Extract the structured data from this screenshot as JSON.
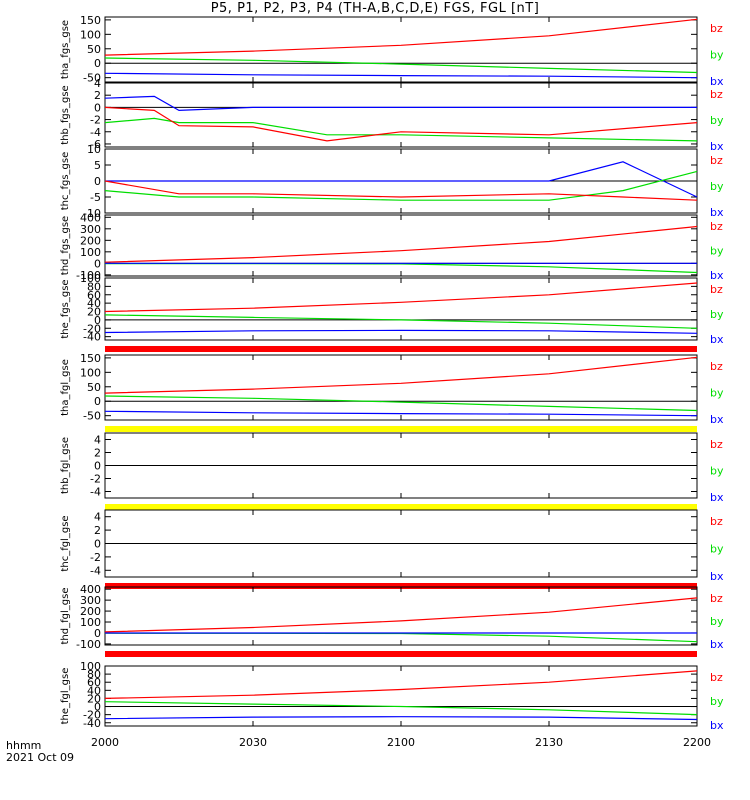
{
  "title": "P5, P1, P2, P3, P4 (TH-A,B,C,D,E) FGS, FGL [nT]",
  "colors": {
    "bx": "#0000ff",
    "by": "#00dd00",
    "bz": "#ff0000",
    "bar_red": "#ff0000",
    "bar_yellow": "#ffff00"
  },
  "x_axis": {
    "label": "hhmm",
    "date": "2021 Oct 09",
    "ticks": [
      "2000",
      "2030",
      "2100",
      "2130",
      "2200"
    ]
  },
  "chart_data": [
    {
      "type": "line",
      "ylabel": "tha_fgs_gse",
      "ylim": [
        -65,
        160
      ],
      "yticks": [
        "150",
        "100",
        "50",
        "0",
        "-50"
      ],
      "legend": [
        "bz",
        "by",
        "bx"
      ],
      "status_bar": "none",
      "x": [
        "2000",
        "2030",
        "2100",
        "2130",
        "2200"
      ],
      "series": [
        {
          "name": "bz",
          "values": [
            28,
            42,
            62,
            95,
            152
          ]
        },
        {
          "name": "by",
          "values": [
            18,
            10,
            -3,
            -18,
            -32
          ]
        },
        {
          "name": "bx",
          "values": [
            -35,
            -40,
            -43,
            -45,
            -50
          ]
        }
      ]
    },
    {
      "type": "line",
      "ylabel": "thb_fgs_gse",
      "ylim": [
        -6.5,
        4
      ],
      "yticks": [
        "4",
        "2",
        "0",
        "-2",
        "-4",
        "-6"
      ],
      "legend": [
        "bz",
        "by",
        "bx"
      ],
      "status_bar": "none",
      "x": [
        "2000",
        "2010",
        "2015",
        "2030",
        "2045",
        "2100",
        "2130",
        "2200"
      ],
      "series": [
        {
          "name": "bx",
          "values": [
            1.5,
            1.8,
            -0.5,
            0,
            0,
            0,
            0,
            0
          ]
        },
        {
          "name": "by",
          "values": [
            -2.5,
            -1.8,
            -2.5,
            -2.5,
            -4.5,
            -4.5,
            -5,
            -5.5
          ]
        },
        {
          "name": "bz",
          "values": [
            0,
            -0.5,
            -3,
            -3.2,
            -5.5,
            -4,
            -4.5,
            -2.5
          ]
        }
      ]
    },
    {
      "type": "line",
      "ylabel": "thc_fgs_gse",
      "ylim": [
        -10,
        10
      ],
      "yticks": [
        "10",
        "5",
        "0",
        "-5",
        "-10"
      ],
      "legend": [
        "bz",
        "by",
        "bx"
      ],
      "status_bar": "none",
      "x": [
        "2000",
        "2015",
        "2030",
        "2100",
        "2130",
        "2145",
        "2200"
      ],
      "series": [
        {
          "name": "bx",
          "values": [
            0,
            0,
            0,
            0,
            0,
            6,
            -5
          ]
        },
        {
          "name": "by",
          "values": [
            -3,
            -5,
            -5,
            -6,
            -6,
            -3,
            3
          ]
        },
        {
          "name": "bz",
          "values": [
            0,
            -4,
            -4,
            -5,
            -4,
            -5,
            -6
          ]
        }
      ]
    },
    {
      "type": "line",
      "ylabel": "thd_fgs_gse",
      "ylim": [
        -110,
        420
      ],
      "yticks": [
        "400",
        "300",
        "200",
        "100",
        "0",
        "-100"
      ],
      "legend": [
        "bz",
        "by",
        "bx"
      ],
      "status_bar": "none",
      "x": [
        "2000",
        "2030",
        "2100",
        "2130",
        "2200"
      ],
      "series": [
        {
          "name": "bz",
          "values": [
            10,
            50,
            110,
            190,
            320
          ]
        },
        {
          "name": "by",
          "values": [
            -2,
            -3,
            -5,
            -30,
            -80
          ]
        },
        {
          "name": "bx",
          "values": [
            0,
            0,
            0,
            0,
            0
          ]
        }
      ]
    },
    {
      "type": "line",
      "ylabel": "the_fgs_gse",
      "ylim": [
        -48,
        100
      ],
      "yticks": [
        "100",
        "80",
        "60",
        "40",
        "20",
        "0",
        "-20",
        "-40"
      ],
      "legend": [
        "bz",
        "by",
        "bx"
      ],
      "status_bar": "red",
      "x": [
        "2000",
        "2030",
        "2100",
        "2130",
        "2200"
      ],
      "series": [
        {
          "name": "bz",
          "values": [
            20,
            28,
            42,
            60,
            88
          ]
        },
        {
          "name": "by",
          "values": [
            12,
            6,
            0,
            -8,
            -20
          ]
        },
        {
          "name": "bx",
          "values": [
            -30,
            -26,
            -25,
            -26,
            -32
          ]
        }
      ]
    },
    {
      "type": "line",
      "ylabel": "tha_fgl_gse",
      "ylim": [
        -65,
        160
      ],
      "yticks": [
        "150",
        "100",
        "50",
        "0",
        "-50"
      ],
      "legend": [
        "bz",
        "by",
        "bx"
      ],
      "status_bar": "yellow",
      "x": [
        "2000",
        "2030",
        "2100",
        "2130",
        "2200"
      ],
      "series": [
        {
          "name": "bz",
          "values": [
            28,
            42,
            62,
            95,
            152
          ]
        },
        {
          "name": "by",
          "values": [
            18,
            10,
            -3,
            -18,
            -32
          ]
        },
        {
          "name": "bx",
          "values": [
            -35,
            -40,
            -43,
            -45,
            -50
          ]
        }
      ]
    },
    {
      "type": "line",
      "ylabel": "thb_fgl_gse",
      "ylim": [
        -5,
        5
      ],
      "yticks": [
        "4",
        "2",
        "0",
        "-2",
        "-4"
      ],
      "legend": [
        "bz",
        "by",
        "bx"
      ],
      "status_bar": "yellow",
      "series": []
    },
    {
      "type": "line",
      "ylabel": "thc_fgl_gse",
      "ylim": [
        -5,
        5
      ],
      "yticks": [
        "4",
        "2",
        "0",
        "-2",
        "-4"
      ],
      "legend": [
        "bz",
        "by",
        "bx"
      ],
      "status_bar": "red",
      "series": []
    },
    {
      "type": "line",
      "ylabel": "thd_fgl_gse",
      "ylim": [
        -110,
        420
      ],
      "yticks": [
        "400",
        "300",
        "200",
        "100",
        "0",
        "-100"
      ],
      "legend": [
        "bz",
        "by",
        "bx"
      ],
      "status_bar": "red",
      "x": [
        "2000",
        "2030",
        "2100",
        "2130",
        "2200"
      ],
      "series": [
        {
          "name": "bz",
          "values": [
            10,
            50,
            110,
            190,
            320
          ]
        },
        {
          "name": "by",
          "values": [
            -2,
            -3,
            -5,
            -30,
            -80
          ]
        },
        {
          "name": "bx",
          "values": [
            0,
            0,
            0,
            0,
            0
          ]
        }
      ]
    },
    {
      "type": "line",
      "ylabel": "the_fgl_gse",
      "ylim": [
        -48,
        100
      ],
      "yticks": [
        "100",
        "80",
        "60",
        "40",
        "20",
        "0",
        "-20",
        "-40"
      ],
      "legend": [
        "bz",
        "by",
        "bx"
      ],
      "status_bar": "none",
      "x": [
        "2000",
        "2030",
        "2100",
        "2130",
        "2200"
      ],
      "series": [
        {
          "name": "bz",
          "values": [
            20,
            28,
            42,
            60,
            88
          ]
        },
        {
          "name": "by",
          "values": [
            12,
            6,
            0,
            -8,
            -20
          ]
        },
        {
          "name": "bx",
          "values": [
            -30,
            -26,
            -25,
            -26,
            -32
          ]
        }
      ]
    }
  ]
}
